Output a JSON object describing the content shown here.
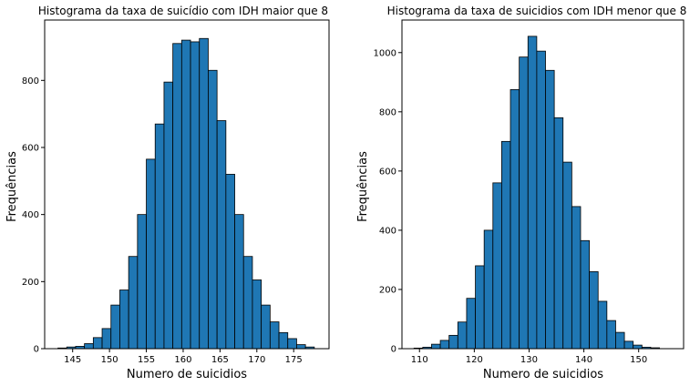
{
  "chart_data": [
    {
      "type": "bar",
      "title": "Histograma da taxa de suicídio com IDH maior que 8",
      "xlabel": "Numero de suicidios",
      "ylabel": "Frequências",
      "xlim": [
        141.2,
        179.8
      ],
      "ylim": [
        0,
        980
      ],
      "xticks": [
        145,
        150,
        155,
        160,
        165,
        170,
        175
      ],
      "yticks": [
        0,
        200,
        400,
        600,
        800
      ],
      "bin_start": 143,
      "bin_width": 1.2,
      "values": [
        2,
        5,
        7,
        15,
        33,
        60,
        130,
        175,
        275,
        400,
        565,
        670,
        795,
        910,
        920,
        915,
        925,
        830,
        680,
        520,
        400,
        275,
        205,
        130,
        80,
        48,
        30,
        12,
        5
      ],
      "bar_color": "#1f77b4",
      "edge_color": "#000000",
      "grid": false
    },
    {
      "type": "bar",
      "title": "Histograma da taxa de suicidios com IDH menor que 8",
      "xlabel": "Numero de suicidios",
      "ylabel": "Frequências",
      "xlim": [
        106.8,
        158.2
      ],
      "ylim": [
        0,
        1110
      ],
      "xticks": [
        110,
        120,
        130,
        140,
        150
      ],
      "yticks": [
        0,
        200,
        400,
        600,
        800,
        1000
      ],
      "bin_start": 109,
      "bin_width": 1.6,
      "values": [
        2,
        5,
        15,
        28,
        45,
        90,
        170,
        280,
        400,
        560,
        700,
        875,
        985,
        1055,
        1005,
        940,
        780,
        630,
        480,
        365,
        260,
        160,
        95,
        55,
        25,
        12,
        5,
        3
      ],
      "bar_color": "#1f77b4",
      "edge_color": "#000000",
      "grid": false
    }
  ]
}
